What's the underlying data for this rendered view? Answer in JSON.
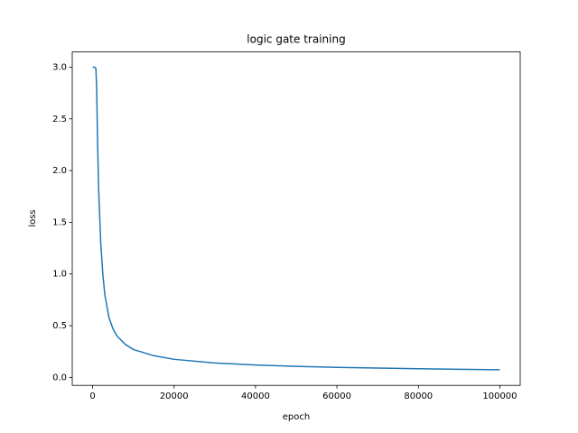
{
  "chart_data": {
    "type": "line",
    "title": "logic gate training",
    "xlabel": "epoch",
    "ylabel": "loss",
    "x": [
      0,
      500,
      800,
      1000,
      1200,
      1500,
      2000,
      2500,
      3000,
      4000,
      5000,
      6000,
      8000,
      10000,
      15000,
      20000,
      30000,
      40000,
      50000,
      60000,
      70000,
      80000,
      90000,
      100000
    ],
    "values": [
      3.0,
      3.0,
      2.99,
      2.8,
      2.3,
      1.8,
      1.3,
      1.0,
      0.8,
      0.58,
      0.47,
      0.4,
      0.32,
      0.27,
      0.21,
      0.175,
      0.14,
      0.12,
      0.107,
      0.097,
      0.09,
      0.084,
      0.079,
      0.074
    ],
    "color": "#1f77b4",
    "xlim": [
      -5000,
      105000
    ],
    "xticks": [
      0,
      20000,
      40000,
      60000,
      80000,
      100000
    ],
    "ylim": [
      -0.077,
      3.147
    ],
    "yticks": [
      {
        "value": 0,
        "label": "0.0"
      },
      {
        "value": 0.5,
        "label": "0.5"
      },
      {
        "value": 1,
        "label": "1.0"
      },
      {
        "value": 1.5,
        "label": "1.5"
      },
      {
        "value": 2,
        "label": "2.0"
      },
      {
        "value": 2.5,
        "label": "2.5"
      },
      {
        "value": 3,
        "label": "3.0"
      }
    ]
  }
}
